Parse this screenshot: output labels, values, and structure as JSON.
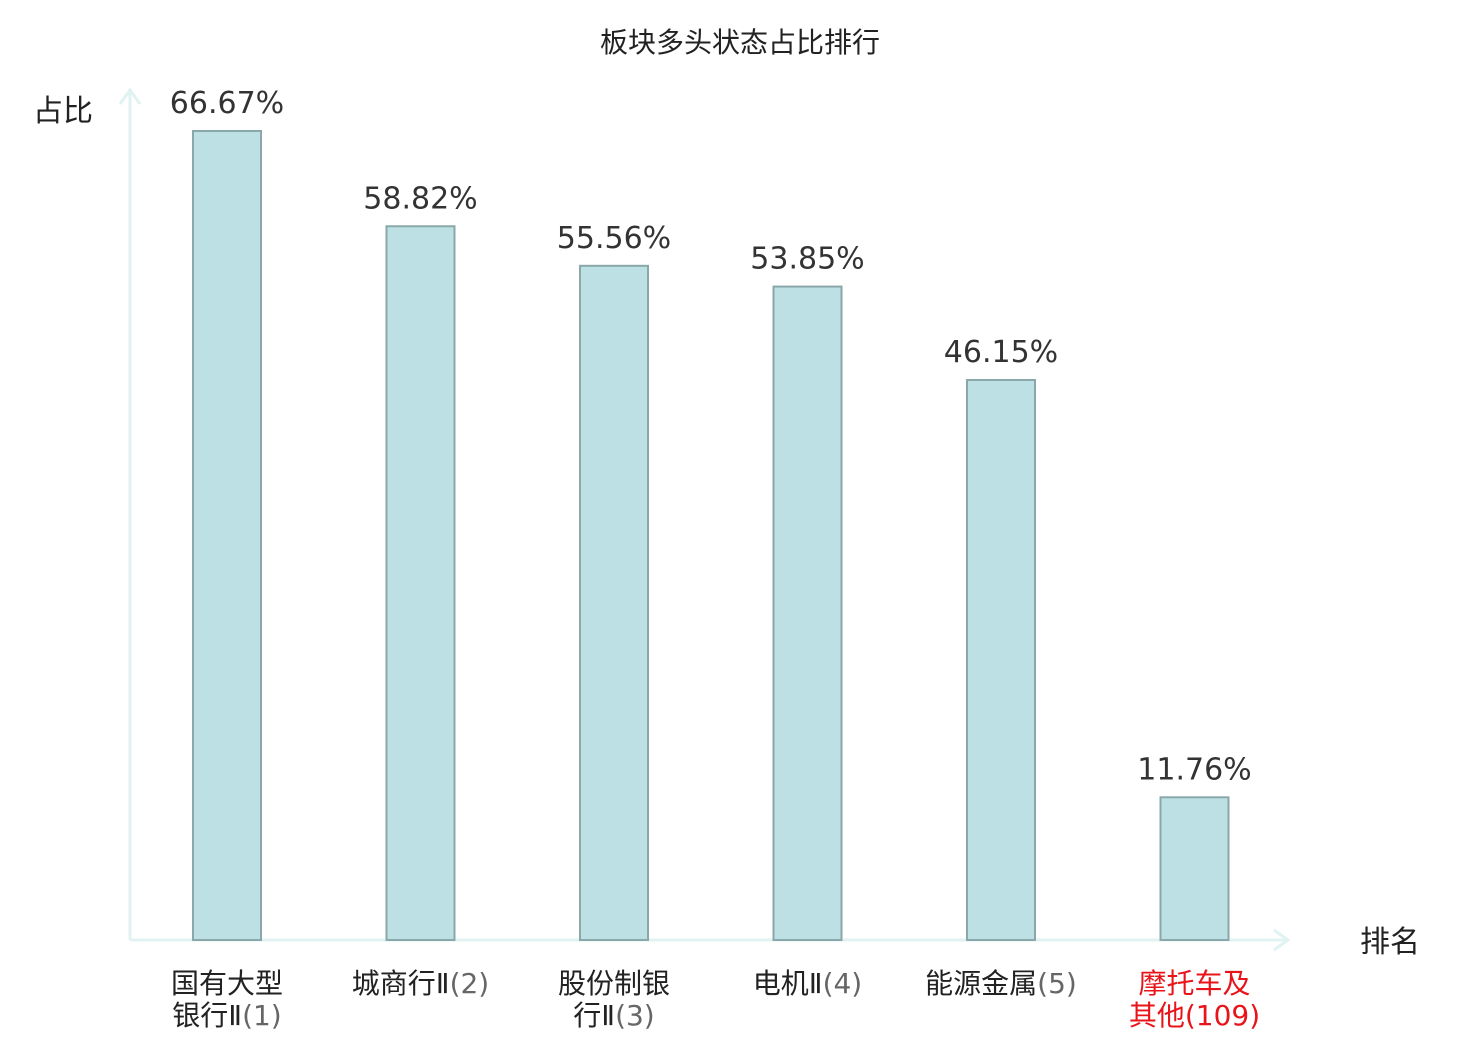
{
  "chart_data": {
    "type": "bar",
    "title": "板块多头状态占比排行",
    "ylabel": "占比",
    "xlabel": "排名",
    "categories": [
      {
        "name_lines": [
          "国有大型",
          "银行Ⅱ"
        ],
        "rank": "(1)"
      },
      {
        "name_lines": [
          "城商行Ⅱ"
        ],
        "rank": "(2)"
      },
      {
        "name_lines": [
          "股份制银",
          "行Ⅱ"
        ],
        "rank": "(3)"
      },
      {
        "name_lines": [
          "电机Ⅱ"
        ],
        "rank": "(4)"
      },
      {
        "name_lines": [
          "能源金属"
        ],
        "rank": "(5)"
      },
      {
        "name_lines": [
          "摩托车及",
          "其他"
        ],
        "rank": "(109)",
        "highlight": true
      }
    ],
    "values": [
      66.67,
      58.82,
      55.56,
      53.85,
      46.15,
      11.76
    ],
    "value_labels": [
      "66.67%",
      "58.82%",
      "55.56%",
      "53.85%",
      "46.15%",
      "11.76%"
    ],
    "ylim": [
      0,
      66.67
    ],
    "grid": false,
    "colors": {
      "bar_fill": "#bce0e3",
      "bar_stroke": "#8aa8aa",
      "axis": "#e0f2f1",
      "highlight_text": "#e8141a"
    }
  }
}
